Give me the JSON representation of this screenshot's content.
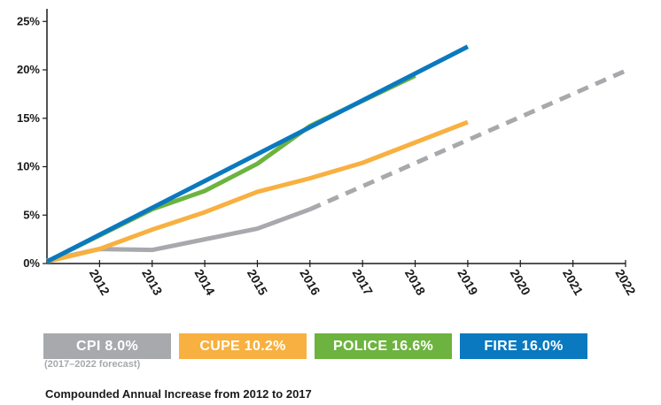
{
  "chart_data": {
    "type": "line",
    "x": [
      "2011",
      "2012",
      "2013",
      "2014",
      "2015",
      "2016",
      "2017",
      "2018",
      "2019",
      "2020",
      "2021",
      "2022"
    ],
    "x_tick_labels": [
      "2012",
      "2013",
      "2014",
      "2015",
      "2016",
      "2017",
      "2018",
      "2019",
      "2020",
      "2021",
      "2022"
    ],
    "y_tick_labels": [
      "0%",
      "5%",
      "10%",
      "15%",
      "20%",
      "25%"
    ],
    "ylim": [
      0,
      27
    ],
    "xlim": [
      2011,
      2022
    ],
    "grid": false,
    "series": [
      {
        "name": "CPI 8.0%",
        "color": "#a7a9ac",
        "points": [
          [
            2011,
            0.3
          ],
          [
            2012,
            1.5
          ],
          [
            2013,
            1.4
          ],
          [
            2014,
            2.5
          ],
          [
            2015,
            3.6
          ],
          [
            2016,
            5.6
          ]
        ],
        "forecast_points": [
          [
            2016,
            5.6
          ],
          [
            2022,
            19.9
          ]
        ]
      },
      {
        "name": "CUPE 10.2%",
        "color": "#f8b040",
        "points": [
          [
            2011,
            0.2
          ],
          [
            2012,
            1.5
          ],
          [
            2013,
            3.5
          ],
          [
            2014,
            5.3
          ],
          [
            2015,
            7.4
          ],
          [
            2016,
            8.8
          ],
          [
            2017,
            10.4
          ],
          [
            2018,
            12.5
          ],
          [
            2019,
            14.6
          ]
        ]
      },
      {
        "name": "POLICE 16.6%",
        "color": "#6db33f",
        "points": [
          [
            2011,
            0.2
          ],
          [
            2013,
            5.6
          ],
          [
            2014,
            7.5
          ],
          [
            2015,
            10.3
          ],
          [
            2016,
            14.2
          ],
          [
            2017,
            16.8
          ],
          [
            2018,
            19.4
          ]
        ]
      },
      {
        "name": "FIRE 16.0%",
        "color": "#0a79bf",
        "points": [
          [
            2011,
            0.2
          ],
          [
            2019,
            22.4
          ]
        ]
      }
    ],
    "legend": {
      "items": [
        {
          "label": "CPI 8.0%",
          "color": "#a7a9ac"
        },
        {
          "label": "CUPE 10.2%",
          "color": "#f8b040"
        },
        {
          "label": "POLICE 16.6%",
          "color": "#6db33f"
        },
        {
          "label": "FIRE 16.0%",
          "color": "#0a79bf"
        }
      ],
      "note": "(2017–2022 forecast)",
      "placement": "bottom-left"
    },
    "caption": "Compounded Annual Increase from 2012 to 2017"
  }
}
